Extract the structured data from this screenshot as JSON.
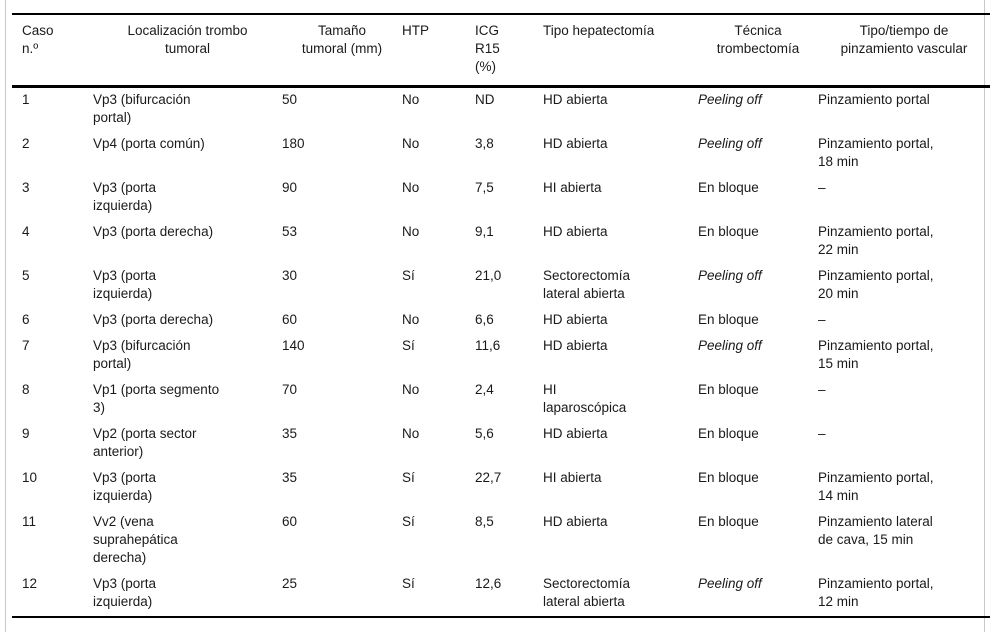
{
  "table": {
    "columns": [
      {
        "key": "caso",
        "label": "Caso\nn.º",
        "align": "left"
      },
      {
        "key": "localizacion",
        "label": "Localización trombo\ntumoral",
        "align": "center"
      },
      {
        "key": "tamano",
        "label": "Tamaño\ntumoral (mm)",
        "align": "center"
      },
      {
        "key": "htp",
        "label": "HTP",
        "align": "left"
      },
      {
        "key": "icg",
        "label": "ICG\nR15\n(%)",
        "align": "left"
      },
      {
        "key": "hepatectomia",
        "label": "Tipo hepatectomía",
        "align": "left"
      },
      {
        "key": "trombectomia",
        "label": "Técnica\ntrombectomía",
        "align": "center"
      },
      {
        "key": "pinzamiento",
        "label": "Tipo/tiempo de\npinzamiento vascular",
        "align": "center"
      }
    ],
    "italic_column": "trombectomia",
    "italic_value": "Peeling off",
    "rows": [
      {
        "caso": "1",
        "localizacion": "Vp3 (bifurcación\nportal)",
        "tamano": "50",
        "htp": "No",
        "icg": "ND",
        "hepatectomia": "HD abierta",
        "trombectomia": "Peeling off",
        "pinzamiento": "Pinzamiento portal"
      },
      {
        "caso": "2",
        "localizacion": "Vp4 (porta común)",
        "tamano": "180",
        "htp": "No",
        "icg": "3,8",
        "hepatectomia": "HD abierta",
        "trombectomia": "Peeling off",
        "pinzamiento": "Pinzamiento portal,\n18 min"
      },
      {
        "caso": "3",
        "localizacion": "Vp3 (porta\nizquierda)",
        "tamano": "90",
        "htp": "No",
        "icg": "7,5",
        "hepatectomia": "HI abierta",
        "trombectomia": "En bloque",
        "pinzamiento": "–"
      },
      {
        "caso": "4",
        "localizacion": "Vp3 (porta derecha)",
        "tamano": "53",
        "htp": "No",
        "icg": "9,1",
        "hepatectomia": "HD abierta",
        "trombectomia": "En bloque",
        "pinzamiento": "Pinzamiento portal,\n22 min"
      },
      {
        "caso": "5",
        "localizacion": "Vp3 (porta\nizquierda)",
        "tamano": "30",
        "htp": "Sí",
        "icg": "21,0",
        "hepatectomia": "Sectorectomía\nlateral abierta",
        "trombectomia": "Peeling off",
        "pinzamiento": "Pinzamiento portal,\n20 min"
      },
      {
        "caso": "6",
        "localizacion": "Vp3 (porta derecha)",
        "tamano": "60",
        "htp": "No",
        "icg": "6,6",
        "hepatectomia": "HD abierta",
        "trombectomia": "En bloque",
        "pinzamiento": "–"
      },
      {
        "caso": "7",
        "localizacion": "Vp3 (bifurcación\nportal)",
        "tamano": "140",
        "htp": "Sí",
        "icg": "11,6",
        "hepatectomia": "HD abierta",
        "trombectomia": "Peeling off",
        "pinzamiento": "Pinzamiento portal,\n15 min"
      },
      {
        "caso": "8",
        "localizacion": "Vp1 (porta segmento\n3)",
        "tamano": "70",
        "htp": "No",
        "icg": "2,4",
        "hepatectomia": "HI\nlaparoscópica",
        "trombectomia": "En bloque",
        "pinzamiento": "–"
      },
      {
        "caso": "9",
        "localizacion": "Vp2 (porta sector\nanterior)",
        "tamano": "35",
        "htp": "No",
        "icg": "5,6",
        "hepatectomia": "HD abierta",
        "trombectomia": "En bloque",
        "pinzamiento": "–"
      },
      {
        "caso": "10",
        "localizacion": "Vp3 (porta\nizquierda)",
        "tamano": "35",
        "htp": "Sí",
        "icg": "22,7",
        "hepatectomia": "HI abierta",
        "trombectomia": "En bloque",
        "pinzamiento": "Pinzamiento portal,\n14 min"
      },
      {
        "caso": "11",
        "localizacion": "Vv2 (vena\nsuprahepática\nderecha)",
        "tamano": "60",
        "htp": "Sí",
        "icg": "8,5",
        "hepatectomia": "HD abierta",
        "trombectomia": "En bloque",
        "pinzamiento": "Pinzamiento lateral\nde cava, 15 min"
      },
      {
        "caso": "12",
        "localizacion": "Vp3 (porta\nizquierda)",
        "tamano": "25",
        "htp": "Sí",
        "icg": "12,6",
        "hepatectomia": "Sectorectomía\nlateral abierta",
        "trombectomia": "Peeling off",
        "pinzamiento": "Pinzamiento portal,\n12 min"
      }
    ]
  }
}
